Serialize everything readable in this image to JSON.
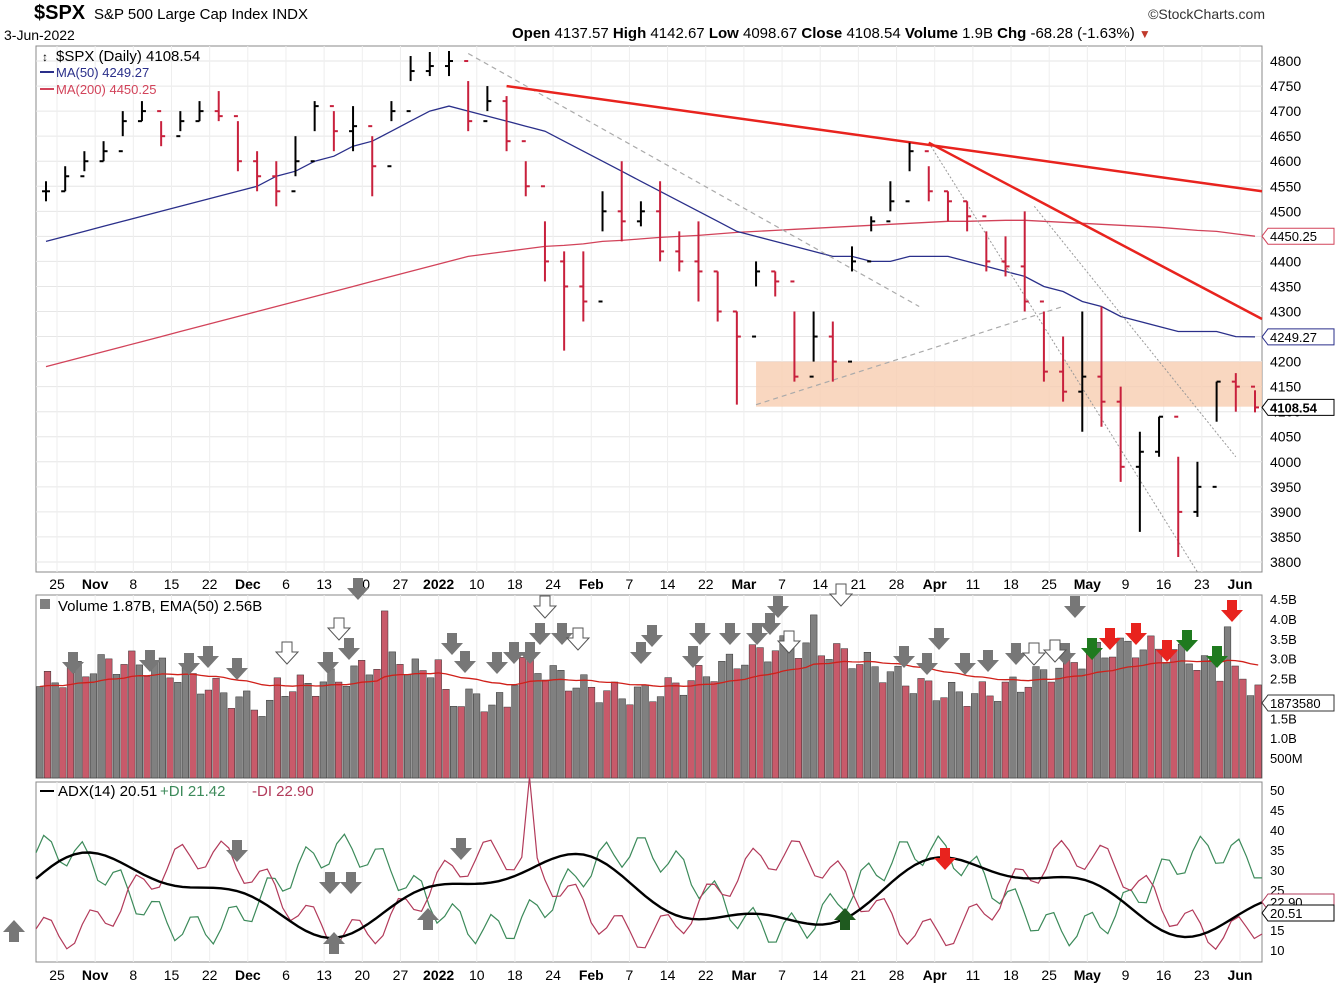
{
  "header": {
    "symbol": "$SPX",
    "name": "S&P 500 Large Cap Index INDX",
    "date": "3-Jun-2022",
    "source": "©StockCharts.com",
    "open_label": "Open",
    "open": "4137.57",
    "high_label": "High",
    "high": "4142.67",
    "low_label": "Low",
    "low": "4098.67",
    "close_label": "Close",
    "close": "4108.54",
    "volume_label": "Volume",
    "volume": "1.9B",
    "chg_label": "Chg",
    "chg": "-68.28 (-1.63%)"
  },
  "colors": {
    "up": "#000000",
    "down": "#c8203c",
    "ma50": "#2a2f8a",
    "ma200": "#d2435a",
    "trend": "#e8231e",
    "zone": "#f8cdb0",
    "vol_up": "#808080",
    "vol_down": "#c85a6a",
    "plus_di": "#3c8a5a",
    "minus_di": "#b23a5a",
    "adx": "#000000"
  },
  "price_panel": {
    "legend": [
      "$SPX (Daily) 4108.54",
      "MA(50) 4249.27",
      "MA(200) 4450.25"
    ],
    "y_ticks": [
      3800,
      3850,
      3900,
      3950,
      4000,
      4050,
      4100,
      4150,
      4200,
      4250,
      4300,
      4350,
      4400,
      4450,
      4500,
      4550,
      4600,
      4650,
      4700,
      4750,
      4800
    ],
    "y_tick_labels": [
      "3800",
      "3850",
      "3900",
      "3950",
      "4000",
      "4050",
      "4100",
      "4150",
      "4200",
      "4250",
      "4300",
      "4350",
      "4400",
      "4450",
      "4500",
      "4550",
      "4600",
      "4650",
      "4700",
      "4750",
      "4800"
    ],
    "tags": [
      "4450.25",
      "4249.27",
      "4108.54"
    ]
  },
  "volume_panel": {
    "legend": "Volume 1.87B, EMA(50) 2.56B",
    "y_tick_labels": [
      "500M",
      "1.0B",
      "1.5B",
      "2.0B",
      "2.5B",
      "3.0B",
      "3.5B",
      "4.0B",
      "4.5B"
    ],
    "tag": "1873580"
  },
  "adx_panel": {
    "legend_adx": "ADX(14) 20.51",
    "legend_pdi": "+DI 21.42",
    "legend_mdi": "-DI 22.90",
    "y_tick_labels": [
      "10",
      "15",
      "20",
      "25",
      "30",
      "35",
      "40",
      "45",
      "50"
    ],
    "tags": [
      "22.90",
      "20.51"
    ]
  },
  "x_axis_labels": [
    "25",
    "Nov",
    "8",
    "15",
    "22",
    "Dec",
    "6",
    "13",
    "20",
    "27",
    "2022",
    "10",
    "18",
    "24",
    "Feb",
    "7",
    "14",
    "22",
    "Mar",
    "7",
    "14",
    "21",
    "28",
    "Apr",
    "11",
    "18",
    "25",
    "May",
    "9",
    "16",
    "23",
    "Jun"
  ],
  "chart_data": {
    "type": "ohlc",
    "title": "$SPX S&P 500 Large Cap Index INDX",
    "ylim": [
      3780,
      4830
    ],
    "x": [
      "2021-10-21",
      "2021-10-25",
      "2021-10-28",
      "2021-11-01",
      "2021-11-04",
      "2021-11-08",
      "2021-11-11",
      "2021-11-15",
      "2021-11-18",
      "2021-11-22",
      "2021-11-26",
      "2021-11-30",
      "2021-12-02",
      "2021-12-06",
      "2021-12-09",
      "2021-12-13",
      "2021-12-16",
      "2021-12-20",
      "2021-12-23",
      "2021-12-27",
      "2021-12-30",
      "2022-01-04",
      "2022-01-07",
      "2022-01-11",
      "2022-01-14",
      "2022-01-19",
      "2022-01-21",
      "2022-01-24",
      "2022-01-27",
      "2022-01-31",
      "2022-02-03",
      "2022-02-07",
      "2022-02-10",
      "2022-02-14",
      "2022-02-17",
      "2022-02-22",
      "2022-02-24",
      "2022-02-28",
      "2022-03-03",
      "2022-03-07",
      "2022-03-10",
      "2022-03-14",
      "2022-03-17",
      "2022-03-21",
      "2022-03-24",
      "2022-03-29",
      "2022-04-01",
      "2022-04-05",
      "2022-04-08",
      "2022-04-12",
      "2022-04-18",
      "2022-04-21",
      "2022-04-26",
      "2022-04-29",
      "2022-05-03",
      "2022-05-06",
      "2022-05-10",
      "2022-05-13",
      "2022-05-17",
      "2022-05-20",
      "2022-05-24",
      "2022-05-27",
      "2022-06-01",
      "2022-06-03"
    ],
    "close": [
      4540,
      4570,
      4600,
      4620,
      4680,
      4700,
      4650,
      4680,
      4700,
      4690,
      4600,
      4570,
      4540,
      4600,
      4710,
      4660,
      4670,
      4590,
      4700,
      4780,
      4790,
      4800,
      4680,
      4720,
      4640,
      4550,
      4400,
      4350,
      4320,
      4500,
      4480,
      4500,
      4420,
      4400,
      4380,
      4300,
      4250,
      4380,
      4360,
      4170,
      4250,
      4200,
      4400,
      4480,
      4520,
      4620,
      4540,
      4520,
      4490,
      4400,
      4390,
      4320,
      4180,
      4140,
      4170,
      4120,
      3990,
      4020,
      4090,
      3900,
      3950,
      4160,
      4150,
      4108.54
    ],
    "high": [
      4560,
      4590,
      4620,
      4640,
      4700,
      4720,
      4680,
      4700,
      4720,
      4740,
      4680,
      4620,
      4600,
      4650,
      4720,
      4700,
      4710,
      4650,
      4720,
      4810,
      4818,
      4820,
      4760,
      4750,
      4730,
      4600,
      4480,
      4420,
      4420,
      4540,
      4600,
      4520,
      4560,
      4460,
      4480,
      4380,
      4300,
      4400,
      4380,
      4300,
      4300,
      4280,
      4430,
      4490,
      4560,
      4637,
      4590,
      4540,
      4520,
      4460,
      4450,
      4500,
      4300,
      4250,
      4300,
      4310,
      4150,
      4060,
      4090,
      4010,
      4000,
      4160,
      4177,
      4142.67
    ],
    "low": [
      4520,
      4540,
      4580,
      4600,
      4650,
      4680,
      4630,
      4660,
      4680,
      4680,
      4580,
      4540,
      4510,
      4570,
      4660,
      4620,
      4620,
      4530,
      4680,
      4760,
      4770,
      4770,
      4660,
      4700,
      4620,
      4530,
      4360,
      4222,
      4280,
      4460,
      4440,
      4470,
      4400,
      4380,
      4320,
      4280,
      4114,
      4350,
      4330,
      4160,
      4200,
      4160,
      4380,
      4460,
      4500,
      4580,
      4520,
      4480,
      4460,
      4380,
      4370,
      4300,
      4160,
      4120,
      4060,
      4070,
      3960,
      3860,
      4010,
      3810,
      3890,
      4080,
      4100,
      4098.67
    ],
    "ma50": [
      4440,
      4450,
      4460,
      4470,
      4480,
      4490,
      4500,
      4510,
      4520,
      4530,
      4540,
      4550,
      4570,
      4580,
      4600,
      4610,
      4630,
      4640,
      4660,
      4680,
      4700,
      4710,
      4700,
      4690,
      4680,
      4670,
      4660,
      4640,
      4620,
      4600,
      4580,
      4560,
      4540,
      4520,
      4500,
      4480,
      4460,
      4450,
      4440,
      4430,
      4420,
      4410,
      4410,
      4400,
      4400,
      4410,
      4410,
      4410,
      4400,
      4390,
      4380,
      4370,
      4350,
      4340,
      4320,
      4310,
      4290,
      4280,
      4270,
      4260,
      4260,
      4260,
      4250,
      4249.27
    ],
    "ma200": [
      4190,
      4200,
      4210,
      4220,
      4230,
      4240,
      4250,
      4260,
      4270,
      4280,
      4290,
      4300,
      4310,
      4320,
      4330,
      4340,
      4350,
      4360,
      4370,
      4380,
      4390,
      4400,
      4410,
      4415,
      4420,
      4425,
      4430,
      4432,
      4435,
      4440,
      4442,
      4445,
      4448,
      4450,
      4452,
      4455,
      4458,
      4460,
      4462,
      4464,
      4466,
      4468,
      4470,
      4472,
      4474,
      4476,
      4478,
      4480,
      4480,
      4481,
      4482,
      4482,
      4480,
      4478,
      4476,
      4474,
      4472,
      4470,
      4468,
      4465,
      4462,
      4460,
      4455,
      4450.25
    ],
    "resistance_zone": [
      4110,
      4200
    ],
    "volume_series": {
      "name": "Volume",
      "ylim": [
        0,
        4600000000
      ]
    },
    "adx_series": {
      "ylim": [
        7,
        52
      ]
    }
  }
}
